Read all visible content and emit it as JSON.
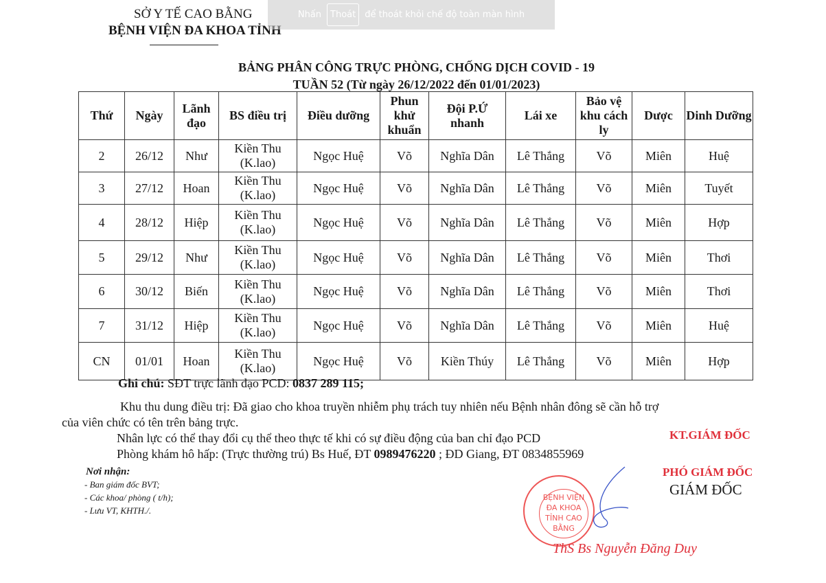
{
  "header": {
    "org_parent": "SỞ Y TẾ CAO BẰNG",
    "org": "BỆNH VIỆN ĐA KHOA TỈNH"
  },
  "overlay": {
    "prefix": "Nhấn",
    "key": "Thoát",
    "suffix": "để thoát khỏi chế độ toàn màn hình"
  },
  "title": "BẢNG PHÂN CÔNG TRỰC PHÒNG, CHỐNG DỊCH COVID - 19",
  "subtitle": "TUẦN 52 (Từ ngày 26/12/2022 đến 01/01/2023)",
  "table": {
    "columns": [
      "Thứ",
      "Ngày",
      "Lãnh đạo",
      "BS điều trị",
      "Điều dưỡng",
      "Phun khử khuẩn",
      "Đội P.Ứ nhanh",
      "Lái xe",
      "Bảo vệ khu cách ly",
      "Dược",
      "Dinh Dưỡng"
    ],
    "rows": [
      [
        "2",
        "26/12",
        "Như",
        "Kiền Thu (K.lao)",
        "Ngọc Huệ",
        "Võ",
        "Nghĩa Dân",
        "Lê Thắng",
        "Võ",
        "Miên",
        "Huệ"
      ],
      [
        "3",
        "27/12",
        "Hoan",
        "Kiền Thu (K.lao)",
        "Ngọc Huệ",
        "Võ",
        "Nghĩa Dân",
        "Lê Thắng",
        "Võ",
        "Miên",
        "Tuyết"
      ],
      [
        "4",
        "28/12",
        "Hiệp",
        "Kiền Thu (K.lao)",
        "Ngọc Huệ",
        "Võ",
        "Nghĩa Dân",
        "Lê Thắng",
        "Võ",
        "Miên",
        "Hợp"
      ],
      [
        "5",
        "29/12",
        "Như",
        "Kiền Thu (K.lao)",
        "Ngọc Huệ",
        "Võ",
        "Nghĩa Dân",
        "Lê Thắng",
        "Võ",
        "Miên",
        "Thơi"
      ],
      [
        "6",
        "30/12",
        "Biến",
        "Kiền Thu (K.lao)",
        "Ngọc Huệ",
        "Võ",
        "Nghĩa Dân",
        "Lê Thắng",
        "Võ",
        "Miên",
        "Thơi"
      ],
      [
        "7",
        "31/12",
        "Hiệp",
        "Kiền Thu (K.lao)",
        "Ngọc Huệ",
        "Võ",
        "Nghĩa Dân",
        "Lê Thắng",
        "Võ",
        "Miên",
        "Huệ"
      ],
      [
        "CN",
        "01/01",
        "Hoan",
        "Kiền Thu (K.lao)",
        "Ngọc Huệ",
        "Võ",
        "Kiền Thúy",
        "Lê Thắng",
        "Võ",
        "Miên",
        "Hợp"
      ]
    ]
  },
  "notes": {
    "label": "Ghi chú:",
    "line1": "SĐT trực lãnh đạo PCD:",
    "phone": "0837 289 115;",
    "line2": "Khu thu dung điều trị: Đã giao cho khoa truyền nhiễm phụ trách tuy nhiên nếu Bệnh nhân đông sẽ cần hỗ trợ",
    "line3": "của viên chức có tên trên bảng trực.",
    "line4": "Nhân lực có thể thay đổi cụ thể theo thực tế khi có sự điều động của ban chỉ đạo PCD",
    "line5a": "Phòng khám hô hấp: (Trực thường trú) Bs Huế,  ĐT",
    "line5b": "0989476220",
    "line5c": "; ĐD Giang, ĐT 0834855969"
  },
  "recipients": {
    "title": "Nơi nhận:",
    "items": [
      "- Ban giám đốc BVT;",
      "- Các khoa/ phòng ( t/h);",
      "- Lưu VT, KHTH./."
    ]
  },
  "signature": {
    "kt": "KT.GIÁM ĐỐC",
    "deputy": "PHÓ GIÁM ĐỐC",
    "role": "GIÁM ĐỐC",
    "name": "ThS Bs Nguyễn Đăng Duy",
    "stamp": "BỆNH VIỆN ĐA KHOA TỈNH CAO BẰNG",
    "stamp_color": "#e0303a"
  }
}
